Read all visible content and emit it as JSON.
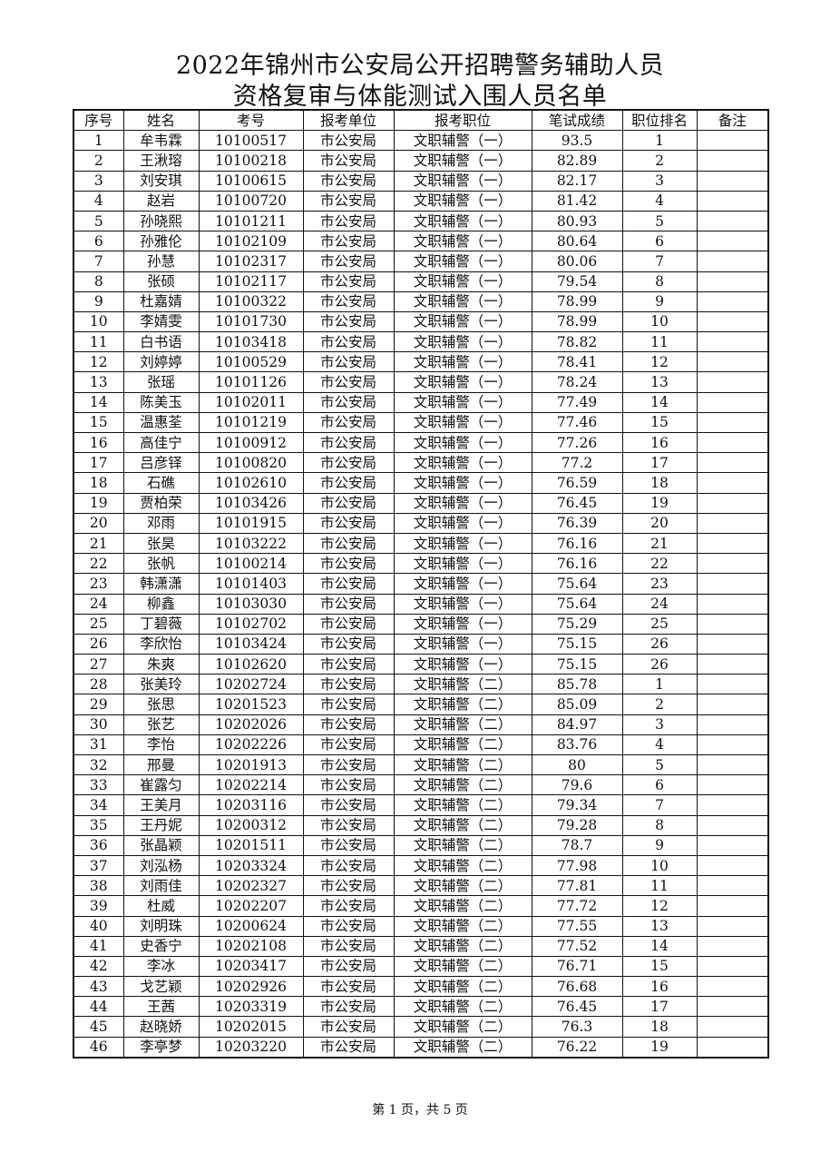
{
  "title": {
    "line1": "2022年锦州市公安局公开招聘警务辅助人员",
    "line2": "资格复审与体能测试入围人员名单"
  },
  "columns": [
    "序号",
    "姓名",
    "考号",
    "报考单位",
    "报考职位",
    "笔试成绩",
    "职位排名",
    "备注"
  ],
  "rows": [
    [
      "1",
      "牟韦霖",
      "10100517",
      "市公安局",
      "文职辅警（一）",
      "93.5",
      "1",
      ""
    ],
    [
      "2",
      "王湫瑢",
      "10100218",
      "市公安局",
      "文职辅警（一）",
      "82.89",
      "2",
      ""
    ],
    [
      "3",
      "刘安琪",
      "10100615",
      "市公安局",
      "文职辅警（一）",
      "82.17",
      "3",
      ""
    ],
    [
      "4",
      "赵岩",
      "10100720",
      "市公安局",
      "文职辅警（一）",
      "81.42",
      "4",
      ""
    ],
    [
      "5",
      "孙晓熙",
      "10101211",
      "市公安局",
      "文职辅警（一）",
      "80.93",
      "5",
      ""
    ],
    [
      "6",
      "孙雅伦",
      "10102109",
      "市公安局",
      "文职辅警（一）",
      "80.64",
      "6",
      ""
    ],
    [
      "7",
      "孙慧",
      "10102317",
      "市公安局",
      "文职辅警（一）",
      "80.06",
      "7",
      ""
    ],
    [
      "8",
      "张硕",
      "10102117",
      "市公安局",
      "文职辅警（一）",
      "79.54",
      "8",
      ""
    ],
    [
      "9",
      "杜嘉婧",
      "10100322",
      "市公安局",
      "文职辅警（一）",
      "78.99",
      "9",
      ""
    ],
    [
      "10",
      "李婧雯",
      "10101730",
      "市公安局",
      "文职辅警（一）",
      "78.99",
      "10",
      ""
    ],
    [
      "11",
      "白书语",
      "10103418",
      "市公安局",
      "文职辅警（一）",
      "78.82",
      "11",
      ""
    ],
    [
      "12",
      "刘婷婷",
      "10100529",
      "市公安局",
      "文职辅警（一）",
      "78.41",
      "12",
      ""
    ],
    [
      "13",
      "张瑶",
      "10101126",
      "市公安局",
      "文职辅警（一）",
      "78.24",
      "13",
      ""
    ],
    [
      "14",
      "陈美玉",
      "10102011",
      "市公安局",
      "文职辅警（一）",
      "77.49",
      "14",
      ""
    ],
    [
      "15",
      "温惠荃",
      "10101219",
      "市公安局",
      "文职辅警（一）",
      "77.46",
      "15",
      ""
    ],
    [
      "16",
      "高佳宁",
      "10100912",
      "市公安局",
      "文职辅警（一）",
      "77.26",
      "16",
      ""
    ],
    [
      "17",
      "吕彦铎",
      "10100820",
      "市公安局",
      "文职辅警（一）",
      "77.2",
      "17",
      ""
    ],
    [
      "18",
      "石礁",
      "10102610",
      "市公安局",
      "文职辅警（一）",
      "76.59",
      "18",
      ""
    ],
    [
      "19",
      "贾柏荣",
      "10103426",
      "市公安局",
      "文职辅警（一）",
      "76.45",
      "19",
      ""
    ],
    [
      "20",
      "邓雨",
      "10101915",
      "市公安局",
      "文职辅警（一）",
      "76.39",
      "20",
      ""
    ],
    [
      "21",
      "张昊",
      "10103222",
      "市公安局",
      "文职辅警（一）",
      "76.16",
      "21",
      ""
    ],
    [
      "22",
      "张帆",
      "10100214",
      "市公安局",
      "文职辅警（一）",
      "76.16",
      "22",
      ""
    ],
    [
      "23",
      "韩潇潇",
      "10101403",
      "市公安局",
      "文职辅警（一）",
      "75.64",
      "23",
      ""
    ],
    [
      "24",
      "柳鑫",
      "10103030",
      "市公安局",
      "文职辅警（一）",
      "75.64",
      "24",
      ""
    ],
    [
      "25",
      "丁碧薇",
      "10102702",
      "市公安局",
      "文职辅警（一）",
      "75.29",
      "25",
      ""
    ],
    [
      "26",
      "李欣怡",
      "10103424",
      "市公安局",
      "文职辅警（一）",
      "75.15",
      "26",
      ""
    ],
    [
      "27",
      "朱爽",
      "10102620",
      "市公安局",
      "文职辅警（一）",
      "75.15",
      "26",
      ""
    ],
    [
      "28",
      "张美玲",
      "10202724",
      "市公安局",
      "文职辅警（二）",
      "85.78",
      "1",
      ""
    ],
    [
      "29",
      "张思",
      "10201523",
      "市公安局",
      "文职辅警（二）",
      "85.09",
      "2",
      ""
    ],
    [
      "30",
      "张艺",
      "10202026",
      "市公安局",
      "文职辅警（二）",
      "84.97",
      "3",
      ""
    ],
    [
      "31",
      "李怡",
      "10202226",
      "市公安局",
      "文职辅警（二）",
      "83.76",
      "4",
      ""
    ],
    [
      "32",
      "邢曼",
      "10201913",
      "市公安局",
      "文职辅警（二）",
      "80",
      "5",
      ""
    ],
    [
      "33",
      "崔露匀",
      "10202214",
      "市公安局",
      "文职辅警（二）",
      "79.6",
      "6",
      ""
    ],
    [
      "34",
      "王美月",
      "10203116",
      "市公安局",
      "文职辅警（二）",
      "79.34",
      "7",
      ""
    ],
    [
      "35",
      "王丹妮",
      "10200312",
      "市公安局",
      "文职辅警（二）",
      "79.28",
      "8",
      ""
    ],
    [
      "36",
      "张晶颖",
      "10201511",
      "市公安局",
      "文职辅警（二）",
      "78.7",
      "9",
      ""
    ],
    [
      "37",
      "刘泓杨",
      "10203324",
      "市公安局",
      "文职辅警（二）",
      "77.98",
      "10",
      ""
    ],
    [
      "38",
      "刘雨佳",
      "10202327",
      "市公安局",
      "文职辅警（二）",
      "77.81",
      "11",
      ""
    ],
    [
      "39",
      "杜威",
      "10202207",
      "市公安局",
      "文职辅警（二）",
      "77.72",
      "12",
      ""
    ],
    [
      "40",
      "刘明珠",
      "10200624",
      "市公安局",
      "文职辅警（二）",
      "77.55",
      "13",
      ""
    ],
    [
      "41",
      "史香宁",
      "10202108",
      "市公安局",
      "文职辅警（二）",
      "77.52",
      "14",
      ""
    ],
    [
      "42",
      "李冰",
      "10203417",
      "市公安局",
      "文职辅警（二）",
      "76.71",
      "15",
      ""
    ],
    [
      "43",
      "戈艺颖",
      "10202926",
      "市公安局",
      "文职辅警（二）",
      "76.68",
      "16",
      ""
    ],
    [
      "44",
      "王茜",
      "10203319",
      "市公安局",
      "文职辅警（二）",
      "76.45",
      "17",
      ""
    ],
    [
      "45",
      "赵晓娇",
      "10202015",
      "市公安局",
      "文职辅警（二）",
      "76.3",
      "18",
      ""
    ],
    [
      "46",
      "李亭梦",
      "10203220",
      "市公安局",
      "文职辅警（二）",
      "76.22",
      "19",
      ""
    ]
  ],
  "footer": "第 1 页，共 5 页"
}
